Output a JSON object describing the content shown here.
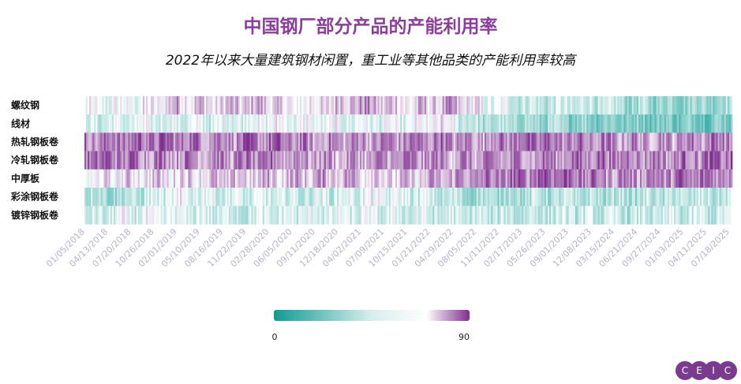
{
  "title": "中国钢厂部分产品的产能利用率",
  "subtitle": "2022年以来大量建筑钢材闲置，重工业等其他品类的产能利用率较高",
  "logo_text": "CEIC",
  "colors": {
    "low": "#0d9c94",
    "mid": "#ffffff",
    "high": "#7f2e8f",
    "title": "#8a3f98"
  },
  "chart_data": {
    "type": "heatmap",
    "rows": [
      "螺纹钢",
      "线材",
      "热轧钢板卷",
      "冷轧钢板卷",
      "中厚板",
      "彩涂钢板卷",
      "镀锌钢板卷"
    ],
    "x_tick_labels": [
      "01/05/2018",
      "04/13/2018",
      "07/20/2018",
      "10/26/2018",
      "02/01/2019",
      "05/10/2019",
      "08/16/2019",
      "11/22/2019",
      "02/28/2020",
      "06/05/2020",
      "09/11/2020",
      "12/18/2020",
      "04/02/2021",
      "07/09/2021",
      "10/15/2021",
      "01/21/2022",
      "04/29/2022",
      "08/05/2022",
      "11/11/2022",
      "02/17/2023",
      "05/26/2023",
      "09/01/2023",
      "12/08/2023",
      "03/15/2024",
      "06/21/2024",
      "09/27/2024",
      "01/03/2025",
      "04/11/2025",
      "07/18/2025"
    ],
    "x_range": [
      "01/05/2018",
      "08/29/2025"
    ],
    "color_range": [
      0,
      90
    ],
    "legend_labels": [
      "0",
      "90"
    ],
    "frequency": "weekly",
    "row_value_profiles": [
      {
        "row": "螺纹钢",
        "knots": [
          [
            0,
            50
          ],
          [
            0.1,
            55
          ],
          [
            0.14,
            68
          ],
          [
            0.2,
            62
          ],
          [
            0.27,
            68
          ],
          [
            0.33,
            55
          ],
          [
            0.42,
            72
          ],
          [
            0.5,
            62
          ],
          [
            0.57,
            68
          ],
          [
            0.62,
            52
          ],
          [
            0.7,
            42
          ],
          [
            0.78,
            44
          ],
          [
            0.85,
            35
          ],
          [
            0.92,
            34
          ],
          [
            1,
            36
          ]
        ]
      },
      {
        "row": "线材",
        "knots": [
          [
            0,
            45
          ],
          [
            0.1,
            50
          ],
          [
            0.2,
            48
          ],
          [
            0.3,
            55
          ],
          [
            0.4,
            50
          ],
          [
            0.5,
            50
          ],
          [
            0.55,
            58
          ],
          [
            0.6,
            40
          ],
          [
            0.7,
            34
          ],
          [
            0.8,
            30
          ],
          [
            0.9,
            26
          ],
          [
            1,
            28
          ]
        ]
      },
      {
        "row": "热轧钢板卷",
        "knots": [
          [
            0,
            75
          ],
          [
            0.1,
            80
          ],
          [
            0.2,
            76
          ],
          [
            0.3,
            78
          ],
          [
            0.35,
            72
          ],
          [
            0.45,
            74
          ],
          [
            0.55,
            77
          ],
          [
            0.6,
            72
          ],
          [
            0.68,
            80
          ],
          [
            0.78,
            74
          ],
          [
            0.88,
            72
          ],
          [
            1,
            78
          ]
        ]
      },
      {
        "row": "冷轧钢板卷",
        "knots": [
          [
            0,
            80
          ],
          [
            0.1,
            76
          ],
          [
            0.2,
            74
          ],
          [
            0.3,
            75
          ],
          [
            0.4,
            70
          ],
          [
            0.5,
            74
          ],
          [
            0.6,
            72
          ],
          [
            0.7,
            74
          ],
          [
            0.8,
            78
          ],
          [
            0.9,
            75
          ],
          [
            1,
            80
          ]
        ]
      },
      {
        "row": "中厚板",
        "knots": [
          [
            0,
            55
          ],
          [
            0.08,
            62
          ],
          [
            0.2,
            64
          ],
          [
            0.3,
            66
          ],
          [
            0.4,
            70
          ],
          [
            0.5,
            62
          ],
          [
            0.58,
            72
          ],
          [
            0.67,
            78
          ],
          [
            0.72,
            84
          ],
          [
            0.8,
            74
          ],
          [
            0.9,
            76
          ],
          [
            1,
            78
          ]
        ]
      },
      {
        "row": "彩涂钢板卷",
        "knots": [
          [
            0,
            42
          ],
          [
            0.05,
            36
          ],
          [
            0.15,
            52
          ],
          [
            0.25,
            46
          ],
          [
            0.35,
            44
          ],
          [
            0.45,
            52
          ],
          [
            0.52,
            46
          ],
          [
            0.6,
            36
          ],
          [
            0.7,
            40
          ],
          [
            0.8,
            38
          ],
          [
            0.9,
            40
          ],
          [
            1,
            42
          ]
        ]
      },
      {
        "row": "镀锌钢板卷",
        "knots": [
          [
            0,
            40
          ],
          [
            0.06,
            50
          ],
          [
            0.15,
            48
          ],
          [
            0.25,
            44
          ],
          [
            0.35,
            48
          ],
          [
            0.45,
            48
          ],
          [
            0.55,
            44
          ],
          [
            0.65,
            42
          ],
          [
            0.75,
            44
          ],
          [
            0.85,
            42
          ],
          [
            1,
            44
          ]
        ]
      }
    ]
  }
}
